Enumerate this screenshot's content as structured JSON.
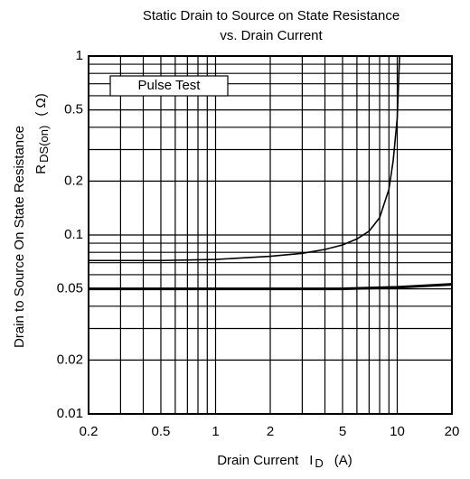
{
  "chart_data": {
    "type": "line",
    "title": [
      "Static Drain to Source on State Resistance",
      "vs. Drain Current"
    ],
    "x_label": {
      "text": "Drain Current",
      "symbol": "I",
      "subscript": "D",
      "unit": "(A)"
    },
    "y_label": {
      "text": "Drain to Source On State Resistance",
      "symbol": "R",
      "subscript": "DS(on)",
      "unit": "( Ω)"
    },
    "annotation": "Pulse Test",
    "xscale": "log",
    "yscale": "log",
    "xlim": [
      0.2,
      20
    ],
    "ylim": [
      0.01,
      1
    ],
    "xticks": [
      0.2,
      0.5,
      1,
      2,
      5,
      10,
      20
    ],
    "yticks": [
      0.01,
      0.02,
      0.05,
      0.1,
      0.2,
      0.5,
      1
    ],
    "xgrid": [
      0.2,
      0.3,
      0.4,
      0.5,
      0.6,
      0.7,
      0.8,
      0.9,
      1,
      2,
      3,
      4,
      5,
      6,
      7,
      8,
      9,
      10,
      20
    ],
    "ygrid": [
      0.01,
      0.02,
      0.03,
      0.04,
      0.05,
      0.06,
      0.07,
      0.08,
      0.09,
      0.1,
      0.2,
      0.3,
      0.4,
      0.5,
      0.6,
      0.7,
      0.8,
      0.9,
      1
    ],
    "grid": true,
    "series": [
      {
        "color": "#000000",
        "width": 1.6,
        "x": [
          0.2,
          0.5,
          1,
          2,
          3,
          4,
          5,
          6,
          7,
          8,
          9,
          9.5,
          10,
          10.3
        ],
        "values": [
          0.072,
          0.072,
          0.073,
          0.076,
          0.079,
          0.083,
          0.088,
          0.095,
          0.105,
          0.125,
          0.18,
          0.26,
          0.45,
          1
        ]
      },
      {
        "color": "#000000",
        "width": 3,
        "x": [
          0.2,
          1,
          5,
          10,
          20
        ],
        "values": [
          0.05,
          0.05,
          0.05,
          0.051,
          0.053
        ]
      }
    ]
  }
}
